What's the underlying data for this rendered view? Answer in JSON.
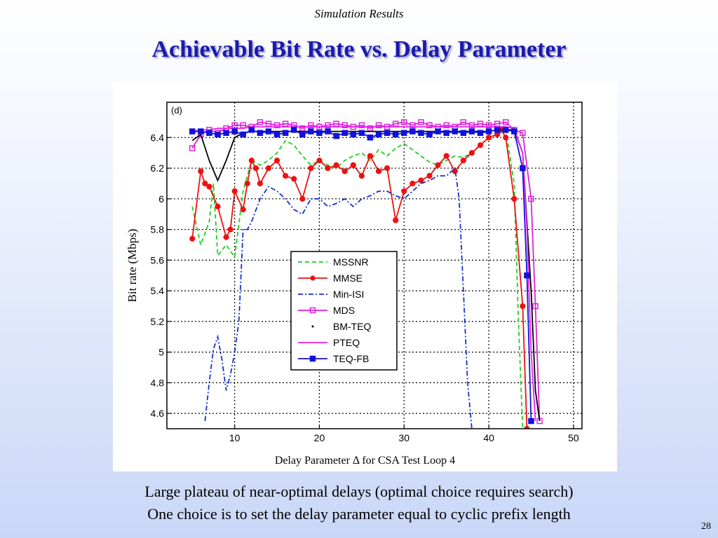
{
  "slide": {
    "section": "Simulation Results",
    "title": "Achievable Bit Rate vs. Delay Parameter",
    "caption": "Delay Parameter Δ for CSA Test Loop 4",
    "bullets": [
      "Large plateau of near-optimal delays (optimal choice requires search)",
      "One choice is to set the delay parameter equal to cyclic prefix length"
    ],
    "page_number": "28"
  },
  "chart_data": {
    "type": "line",
    "panel_label": "(d)",
    "ylabel": "Bit rate (Mbps)",
    "xlabel": "",
    "xlim": [
      2,
      51
    ],
    "ylim": [
      4.5,
      6.63
    ],
    "xticks": [
      10,
      20,
      30,
      40,
      50
    ],
    "yticks": [
      4.6,
      4.8,
      5,
      5.2,
      5.4,
      5.6,
      5.8,
      6,
      6.2,
      6.4
    ],
    "ytick_labels": [
      "4.6",
      "4.8",
      "5",
      "5.2",
      "5.4",
      "5.6",
      "5.8",
      "6",
      "6.2",
      "6.4"
    ],
    "grid": true,
    "legend_position": "center",
    "series": [
      {
        "name": "MSSNR",
        "color": "#22cc22",
        "style": "dashed",
        "marker": "none",
        "x": [
          5,
          6,
          7,
          7.5,
          8,
          9,
          10,
          11,
          12,
          13,
          14,
          15,
          16,
          17,
          18,
          19,
          20,
          21,
          22,
          23,
          24,
          25,
          26,
          27,
          28,
          29,
          30,
          31,
          32,
          33,
          34,
          35,
          36,
          37,
          38,
          39,
          40,
          41,
          42,
          43,
          43.5,
          44
        ],
        "y": [
          5.95,
          5.7,
          5.85,
          6.1,
          5.63,
          5.7,
          5.62,
          6.05,
          6.25,
          6.22,
          6.25,
          6.3,
          6.38,
          6.35,
          6.28,
          6.22,
          6.25,
          6.22,
          6.2,
          6.25,
          6.28,
          6.3,
          6.25,
          6.32,
          6.28,
          6.33,
          6.36,
          6.32,
          6.28,
          6.24,
          6.22,
          6.25,
          6.28,
          6.27,
          6.3,
          6.35,
          6.4,
          6.42,
          6.45,
          6.1,
          5.2,
          4.5
        ]
      },
      {
        "name": "MMSE",
        "color": "#ee1111",
        "style": "solid",
        "marker": "circle",
        "x": [
          5,
          6,
          6.5,
          7,
          8,
          9,
          9.5,
          10,
          11,
          11.5,
          12,
          12.5,
          13,
          14,
          15,
          16,
          17,
          18,
          19,
          20,
          21,
          22,
          23,
          24,
          25,
          26,
          27,
          28,
          29,
          30,
          31,
          32,
          33,
          34,
          35,
          36,
          37,
          38,
          39,
          40,
          41,
          41.5,
          42,
          43,
          44,
          44.5
        ],
        "y": [
          5.74,
          6.18,
          6.1,
          6.08,
          5.95,
          5.75,
          5.8,
          6.05,
          5.93,
          6.1,
          6.25,
          6.2,
          6.1,
          6.2,
          6.25,
          6.15,
          6.13,
          6.0,
          6.2,
          6.25,
          6.2,
          6.22,
          6.18,
          6.22,
          6.15,
          6.28,
          6.18,
          6.2,
          5.86,
          6.05,
          6.1,
          6.12,
          6.15,
          6.22,
          6.28,
          6.18,
          6.25,
          6.3,
          6.35,
          6.4,
          6.42,
          6.45,
          6.4,
          6.0,
          5.3,
          4.5
        ]
      },
      {
        "name": "Min-ISI",
        "color": "#1133cc",
        "style": "dashdot",
        "marker": "none",
        "x": [
          6.5,
          7,
          7.5,
          8,
          8.5,
          9,
          9.5,
          10,
          10.5,
          11,
          11.5,
          12,
          13,
          14,
          15,
          16,
          17,
          18,
          19,
          20,
          21,
          22,
          23,
          24,
          25,
          26,
          27,
          28,
          29,
          30,
          31,
          32,
          33,
          34,
          35,
          36,
          36.5,
          37,
          37.5,
          38
        ],
        "y": [
          4.55,
          4.8,
          5.02,
          5.1,
          4.95,
          4.75,
          4.85,
          5.0,
          5.2,
          5.8,
          5.8,
          5.85,
          6.0,
          6.08,
          6.05,
          6.0,
          5.93,
          5.9,
          6.0,
          6.0,
          5.95,
          5.97,
          6.0,
          5.95,
          6.0,
          6.02,
          6.05,
          6.05,
          6.02,
          6.0,
          6.05,
          6.1,
          6.12,
          6.15,
          6.15,
          6.2,
          6.0,
          5.4,
          4.8,
          4.5
        ]
      },
      {
        "name": "MDS",
        "color": "#dd22dd",
        "style": "solid",
        "marker": "square",
        "x": [
          5,
          6,
          7,
          8,
          9,
          10,
          11,
          12,
          13,
          14,
          15,
          16,
          17,
          18,
          19,
          20,
          21,
          22,
          23,
          24,
          25,
          26,
          27,
          28,
          29,
          30,
          31,
          32,
          33,
          34,
          35,
          36,
          37,
          38,
          39,
          40,
          41,
          42,
          43,
          44,
          45,
          45.5,
          46
        ],
        "y": [
          6.33,
          6.42,
          6.45,
          6.43,
          6.46,
          6.48,
          6.48,
          6.47,
          6.5,
          6.49,
          6.48,
          6.49,
          6.48,
          6.46,
          6.48,
          6.47,
          6.48,
          6.49,
          6.48,
          6.47,
          6.48,
          6.46,
          6.48,
          6.47,
          6.49,
          6.5,
          6.48,
          6.5,
          6.48,
          6.47,
          6.48,
          6.47,
          6.5,
          6.48,
          6.49,
          6.48,
          6.49,
          6.5,
          6.45,
          6.43,
          6.0,
          5.3,
          4.55
        ]
      },
      {
        "name": "BM-TEQ",
        "color": "#000000",
        "style": "solid",
        "marker": "none",
        "x": [
          5,
          6,
          7,
          8,
          9,
          10,
          11,
          12,
          13,
          14,
          15,
          16,
          17,
          18,
          19,
          20,
          21,
          22,
          23,
          24,
          25,
          26,
          27,
          28,
          29,
          30,
          31,
          32,
          33,
          34,
          35,
          36,
          37,
          38,
          39,
          40,
          41,
          42,
          43,
          44,
          45,
          45.5,
          46
        ],
        "y": [
          6.38,
          6.42,
          6.25,
          6.12,
          6.25,
          6.4,
          6.43,
          6.44,
          6.44,
          6.44,
          6.44,
          6.44,
          6.44,
          6.44,
          6.44,
          6.44,
          6.44,
          6.44,
          6.44,
          6.44,
          6.44,
          6.44,
          6.44,
          6.44,
          6.44,
          6.44,
          6.44,
          6.44,
          6.44,
          6.44,
          6.44,
          6.44,
          6.44,
          6.44,
          6.44,
          6.44,
          6.45,
          6.45,
          6.45,
          6.3,
          5.4,
          4.75,
          4.55
        ]
      },
      {
        "name": "PTEQ",
        "color": "#ee22ee",
        "style": "solid",
        "marker": "none",
        "x": [
          5,
          6,
          7,
          8,
          9,
          10,
          11,
          12,
          13,
          14,
          15,
          16,
          17,
          18,
          19,
          20,
          21,
          22,
          23,
          24,
          25,
          26,
          27,
          28,
          29,
          30,
          31,
          32,
          33,
          34,
          35,
          36,
          37,
          38,
          39,
          40,
          41,
          42,
          43,
          44,
          44.5,
          45,
          45.5
        ],
        "y": [
          6.44,
          6.45,
          6.45,
          6.46,
          6.46,
          6.46,
          6.46,
          6.47,
          6.47,
          6.47,
          6.47,
          6.47,
          6.47,
          6.47,
          6.47,
          6.47,
          6.47,
          6.47,
          6.47,
          6.47,
          6.47,
          6.47,
          6.47,
          6.47,
          6.47,
          6.47,
          6.47,
          6.47,
          6.47,
          6.47,
          6.47,
          6.47,
          6.47,
          6.47,
          6.47,
          6.47,
          6.47,
          6.47,
          6.46,
          6.3,
          5.8,
          5.0,
          4.55
        ]
      },
      {
        "name": "TEQ-FB",
        "color": "#1111dd",
        "style": "solid",
        "marker": "square",
        "x": [
          5,
          6,
          7,
          8,
          9,
          10,
          11,
          12,
          13,
          14,
          15,
          16,
          17,
          18,
          19,
          20,
          21,
          22,
          23,
          24,
          25,
          26,
          27,
          28,
          29,
          30,
          31,
          32,
          33,
          34,
          35,
          36,
          37,
          38,
          39,
          40,
          41,
          42,
          43,
          44,
          44.5,
          45
        ],
        "y": [
          6.44,
          6.44,
          6.43,
          6.42,
          6.43,
          6.44,
          6.42,
          6.45,
          6.43,
          6.44,
          6.42,
          6.43,
          6.45,
          6.42,
          6.44,
          6.43,
          6.44,
          6.41,
          6.43,
          6.42,
          6.43,
          6.4,
          6.42,
          6.43,
          6.42,
          6.43,
          6.44,
          6.43,
          6.42,
          6.44,
          6.43,
          6.44,
          6.43,
          6.44,
          6.43,
          6.44,
          6.45,
          6.45,
          6.44,
          6.2,
          5.5,
          4.55
        ]
      }
    ]
  }
}
